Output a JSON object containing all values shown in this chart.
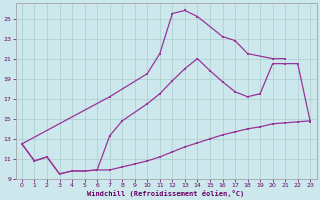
{
  "xlabel": "Windchill (Refroidissement éolien,°C)",
  "xlim": [
    -0.5,
    23.5
  ],
  "ylim": [
    9,
    26.5
  ],
  "xticks": [
    0,
    1,
    2,
    3,
    4,
    5,
    6,
    7,
    8,
    9,
    10,
    11,
    12,
    13,
    14,
    15,
    16,
    17,
    18,
    19,
    20,
    21,
    22,
    23
  ],
  "yticks": [
    9,
    11,
    13,
    15,
    17,
    19,
    21,
    23,
    25
  ],
  "bg_color": "#cce8ec",
  "grid_color": "#aacccc",
  "line_color": "#993399",
  "font_color": "#660066",
  "line1_x": [
    0,
    1,
    2,
    3,
    4,
    5,
    6,
    7,
    8,
    9,
    10,
    11,
    12,
    13,
    14,
    15,
    16,
    17,
    18,
    19,
    20,
    21,
    22,
    23
  ],
  "line1_y": [
    12.5,
    10.8,
    11.2,
    9.5,
    9.8,
    9.8,
    9.9,
    9.9,
    10.2,
    10.5,
    10.8,
    11.2,
    11.7,
    12.2,
    12.6,
    13.0,
    13.4,
    13.7,
    14.0,
    14.2,
    14.5,
    14.6,
    14.7,
    14.8
  ],
  "line2_x": [
    0,
    1,
    2,
    3,
    4,
    5,
    6,
    7,
    8,
    10,
    11,
    12,
    13,
    14,
    15,
    16,
    17,
    18,
    19,
    20,
    21,
    22,
    23
  ],
  "line2_y": [
    12.5,
    10.8,
    11.2,
    9.5,
    9.8,
    9.8,
    9.9,
    13.3,
    14.8,
    16.5,
    17.5,
    18.8,
    20.0,
    21.0,
    19.8,
    18.7,
    17.7,
    17.2,
    17.5,
    20.5,
    20.5,
    20.5,
    14.7
  ],
  "line3_x": [
    0,
    7,
    10,
    11,
    12,
    13,
    14,
    16,
    17,
    18,
    20,
    21
  ],
  "line3_y": [
    12.5,
    17.2,
    19.5,
    21.5,
    25.5,
    25.8,
    25.2,
    23.2,
    22.8,
    21.5,
    21.0,
    21.0
  ]
}
